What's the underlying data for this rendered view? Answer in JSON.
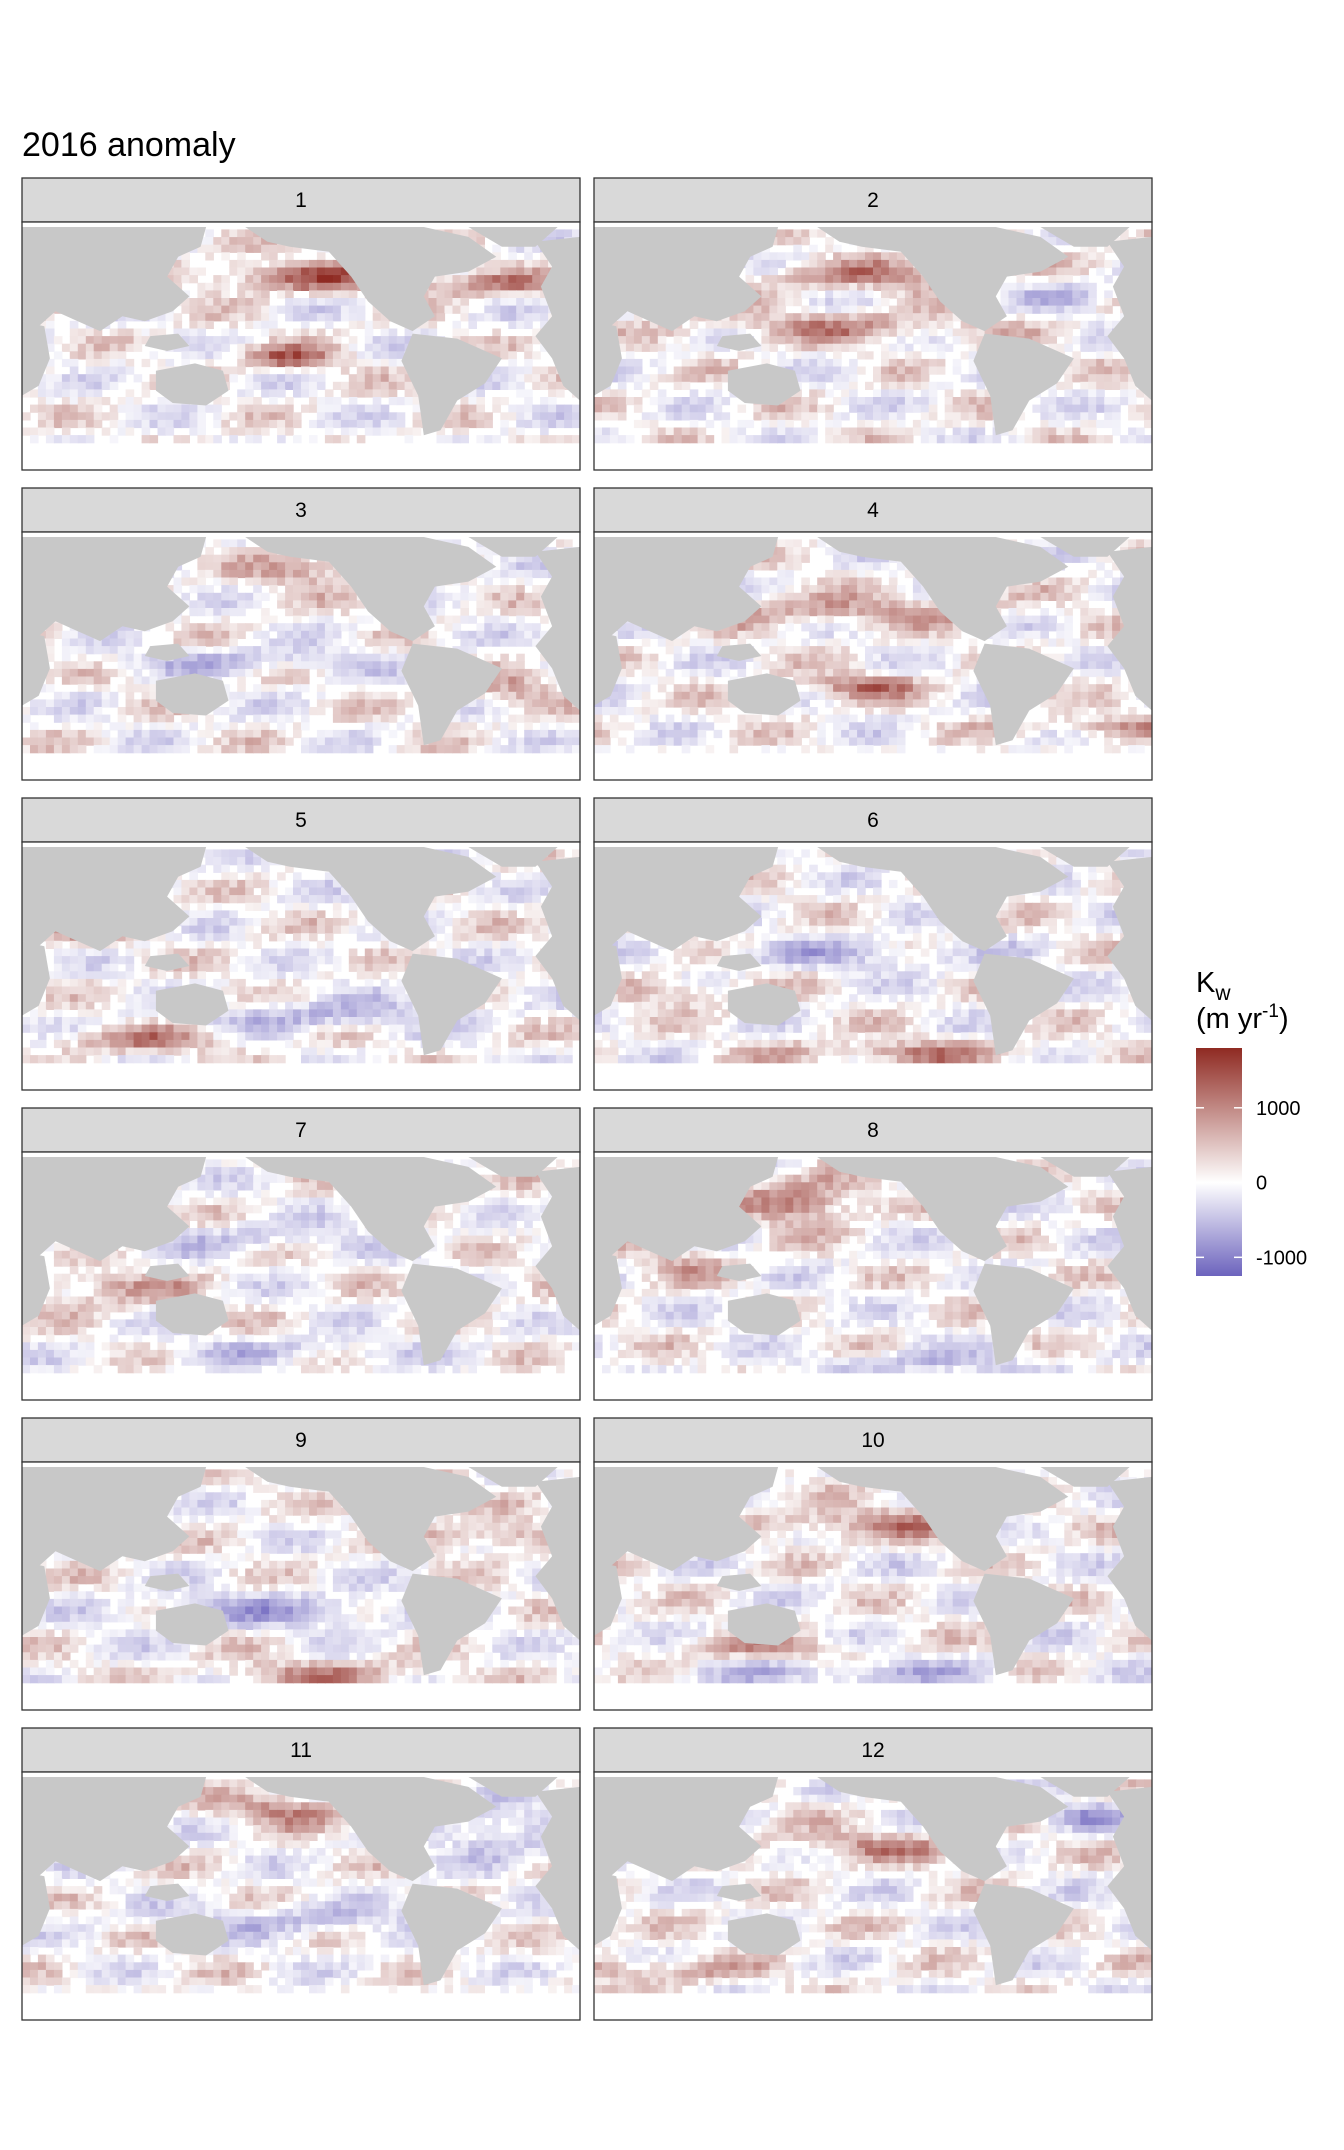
{
  "chart_data": {
    "type": "heatmap",
    "title": "2016 anomaly",
    "facet_variable": "month",
    "panels": [
      "1",
      "2",
      "3",
      "4",
      "5",
      "6",
      "7",
      "8",
      "9",
      "10",
      "11",
      "12"
    ],
    "legend": {
      "title_main": "K",
      "title_sub": "w",
      "unit_pre": "(m yr",
      "unit_sup": "-1",
      "unit_post": ")",
      "breaks": [
        1000,
        0,
        -1000
      ],
      "break_labels": [
        "1000",
        "0",
        "-1000"
      ],
      "limits": [
        -1250,
        1800
      ],
      "low_color": "#6c63bd",
      "mid_color": "#ffffff",
      "high_color": "#8f2a22",
      "placement": "right"
    },
    "land_color": "#c8c8c8",
    "ocean_mask_color": "#ffffff",
    "hotspots": [
      {
        "panel": "1",
        "features": [
          "strong positive patch in North Pacific",
          "positive band in North Atlantic",
          "positive spot near Indonesia",
          "mixed weak anomalies elsewhere"
        ]
      },
      {
        "panel": "2",
        "features": [
          "positive band across North Pacific",
          "positive band in central Pacific",
          "weak negative patches in Atlantic"
        ]
      },
      {
        "panel": "3",
        "features": [
          "positive patch in northeast Pacific",
          "negative bands in tropical Pacific",
          "positive patch in South Atlantic"
        ]
      },
      {
        "panel": "4",
        "features": [
          "positive bands in North Pacific",
          "positive spot in South Pacific",
          "positive band in Southern Ocean Atlantic sector"
        ]
      },
      {
        "panel": "5",
        "features": [
          "positive patch in Arabian Sea",
          "positive band south of Australia",
          "negative bands in South Pacific"
        ]
      },
      {
        "panel": "6",
        "features": [
          "negative bands in tropical Pacific",
          "positive band in Southern Ocean Pacific sector"
        ]
      },
      {
        "panel": "7",
        "features": [
          "positive band in Indian Ocean",
          "negative bands in North and South Pacific"
        ]
      },
      {
        "panel": "8",
        "features": [
          "strong positive patch off East Asia",
          "negative patches in Southern Ocean"
        ]
      },
      {
        "panel": "9",
        "features": [
          "positive band in North Atlantic",
          "negative bands across South Pacific",
          "positive band in Southern Ocean"
        ]
      },
      {
        "panel": "10",
        "features": [
          "positive bands in North Pacific",
          "negative band in Southern Ocean",
          "positive patch south of Indian Ocean"
        ]
      },
      {
        "panel": "11",
        "features": [
          "positive patch in North Pacific",
          "negative patch in North Atlantic",
          "negative band in South Pacific"
        ]
      },
      {
        "panel": "12",
        "features": [
          "positive bands in North Pacific",
          "negative spot in North Atlantic",
          "positive band in Southern Ocean Indian sector"
        ]
      }
    ]
  }
}
